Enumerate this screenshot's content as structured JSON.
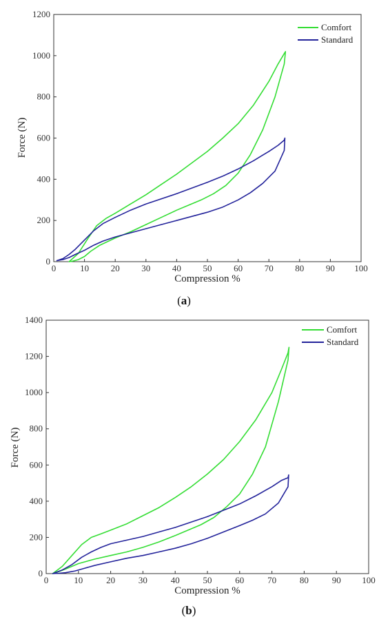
{
  "chart_data": [
    {
      "type": "line",
      "panel": "a",
      "xlabel": "Compression %",
      "ylabel": "Force (N)",
      "xlim": [
        0,
        100
      ],
      "ylim": [
        0,
        1200
      ],
      "xticks": [
        0,
        10,
        20,
        30,
        40,
        50,
        60,
        70,
        80,
        90,
        100
      ],
      "yticks": [
        0,
        200,
        400,
        600,
        800,
        1000,
        1200
      ],
      "grid": false,
      "legend_position": "top-right",
      "colors": {
        "Comfort": "#33dd33",
        "Standard": "#22229a"
      },
      "series": [
        {
          "name": "Comfort",
          "x": [
            5,
            8,
            11,
            14,
            17,
            20,
            25,
            30,
            35,
            40,
            45,
            50,
            55,
            60,
            65,
            70,
            73,
            75,
            75.4,
            75,
            72,
            68,
            64,
            60,
            56,
            52,
            48,
            44,
            40,
            35,
            30,
            25,
            20,
            15,
            12,
            10,
            8,
            6,
            5
          ],
          "y": [
            0,
            40,
            110,
            175,
            210,
            235,
            280,
            325,
            375,
            425,
            480,
            535,
            600,
            670,
            760,
            875,
            960,
            1010,
            1020,
            960,
            800,
            640,
            520,
            430,
            370,
            330,
            300,
            275,
            250,
            215,
            180,
            145,
            115,
            80,
            50,
            25,
            10,
            2,
            0
          ]
        },
        {
          "name": "Standard",
          "x": [
            1,
            3,
            5,
            7,
            10,
            13,
            16,
            20,
            25,
            30,
            40,
            50,
            55,
            60,
            65,
            70,
            73,
            75,
            75.2,
            75,
            72,
            68,
            64,
            60,
            55,
            50,
            45,
            40,
            35,
            30,
            25,
            20,
            16,
            13,
            10,
            7,
            5,
            3,
            1
          ],
          "y": [
            5,
            15,
            35,
            60,
            105,
            150,
            185,
            215,
            250,
            280,
            330,
            385,
            415,
            450,
            490,
            535,
            565,
            590,
            600,
            540,
            440,
            380,
            335,
            300,
            265,
            240,
            220,
            200,
            180,
            160,
            140,
            120,
            100,
            80,
            55,
            35,
            20,
            10,
            5
          ]
        }
      ]
    },
    {
      "type": "line",
      "panel": "b",
      "xlabel": "Compression %",
      "ylabel": "Force (N)",
      "xlim": [
        0,
        100
      ],
      "ylim": [
        0,
        1400
      ],
      "xticks": [
        0,
        10,
        20,
        30,
        40,
        50,
        60,
        70,
        80,
        90,
        100
      ],
      "yticks": [
        0,
        200,
        400,
        600,
        800,
        1000,
        1200,
        1400
      ],
      "grid": false,
      "legend_position": "top-right",
      "colors": {
        "Comfort": "#33dd33",
        "Standard": "#22229a"
      },
      "series": [
        {
          "name": "Comfort",
          "x": [
            2,
            5,
            8,
            11,
            14,
            17,
            20,
            25,
            30,
            35,
            40,
            45,
            50,
            55,
            60,
            65,
            70,
            73,
            75,
            75.3,
            75,
            72,
            68,
            64,
            60,
            56,
            52,
            48,
            44,
            40,
            35,
            30,
            25,
            20,
            15,
            10,
            6,
            3,
            2
          ],
          "y": [
            0,
            40,
            100,
            160,
            200,
            220,
            240,
            275,
            320,
            365,
            420,
            480,
            550,
            630,
            730,
            850,
            1000,
            1130,
            1220,
            1250,
            1180,
            950,
            700,
            550,
            440,
            370,
            310,
            270,
            240,
            210,
            175,
            145,
            120,
            100,
            80,
            55,
            25,
            5,
            0
          ]
        },
        {
          "name": "Standard",
          "x": [
            2,
            5,
            8,
            11,
            14,
            17,
            20,
            25,
            30,
            35,
            40,
            45,
            50,
            55,
            60,
            65,
            70,
            73,
            75,
            75.2,
            75,
            72,
            68,
            64,
            60,
            55,
            50,
            45,
            40,
            35,
            30,
            25,
            20,
            15,
            12,
            9,
            6,
            4,
            2
          ],
          "y": [
            0,
            20,
            50,
            90,
            120,
            145,
            165,
            185,
            205,
            230,
            255,
            285,
            315,
            350,
            385,
            430,
            480,
            515,
            530,
            545,
            480,
            390,
            330,
            295,
            265,
            230,
            195,
            165,
            140,
            120,
            100,
            85,
            65,
            45,
            30,
            15,
            5,
            2,
            0
          ]
        }
      ]
    }
  ],
  "captions": [
    {
      "open": "(",
      "letter": "a",
      "close": ")"
    },
    {
      "open": "(",
      "letter": "b",
      "close": ")"
    }
  ]
}
